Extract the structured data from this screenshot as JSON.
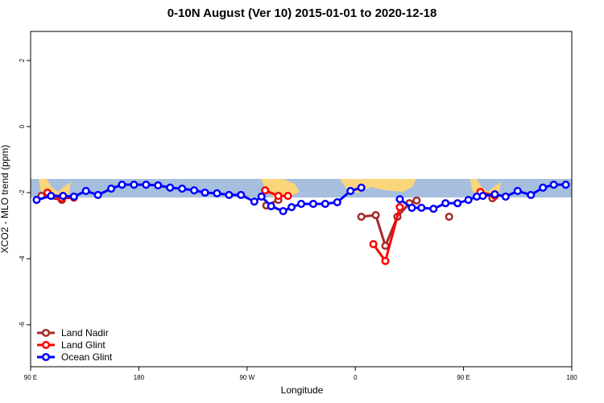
{
  "chart_data": {
    "type": "line",
    "title": "0-10N August (Ver 10)   2015-01-01 to 2020-12-18",
    "x_label": "Longitude",
    "y_label": "XCO2 - MLO trend (ppm)",
    "xlim": [
      90,
      540
    ],
    "ylim": [
      -7.27,
      2.88
    ],
    "xticks": [
      {
        "value": 90,
        "label": "90 E"
      },
      180,
      {
        "value": 270,
        "label": "90 W"
      },
      {
        "value": 360,
        "label": "0"
      },
      {
        "value": 450,
        "label": "90 E"
      },
      {
        "value": 540,
        "label": "180"
      }
    ],
    "yticks": [
      2,
      0,
      -2,
      -4,
      -6
    ],
    "legend": "bottom-left",
    "series": [
      {
        "name": "Land Nadir",
        "color": "#a52a2a",
        "x": [
          99,
          116,
          null,
          286,
          296,
          null,
          365,
          377,
          385,
          395,
          405,
          411,
          null,
          438,
          null,
          474
        ],
        "values": [
          -2.1,
          -2.22,
          null,
          -2.39,
          -2.22,
          null,
          -2.73,
          -2.68,
          -3.61,
          -2.73,
          -2.32,
          -2.24,
          null,
          -2.73,
          null,
          -2.17
        ]
      },
      {
        "name": "Land Glint",
        "color": "#ff0000",
        "x": [
          104,
          116,
          126,
          null,
          285,
          296,
          304,
          null,
          375,
          385,
          397,
          null,
          464,
          476
        ],
        "values": [
          -2.0,
          -2.17,
          -2.15,
          null,
          -1.93,
          -2.1,
          -2.1,
          null,
          -3.56,
          -4.07,
          -2.44,
          null,
          -1.98,
          -2.1
        ]
      },
      {
        "name": "Ocean Glint",
        "color": "#0000ff",
        "x": [
          95,
          107,
          117,
          126,
          136,
          146,
          157,
          166,
          176,
          186,
          196,
          206,
          216,
          226,
          235,
          245,
          255,
          265,
          276,
          282,
          290,
          300,
          307,
          315,
          325,
          335,
          345,
          356,
          365,
          null,
          397,
          407,
          415,
          425,
          435,
          445,
          454,
          461,
          466,
          476,
          485,
          495,
          506,
          516,
          525,
          535
        ],
        "values": [
          -2.22,
          -2.1,
          -2.1,
          -2.12,
          -1.95,
          -2.07,
          -1.88,
          -1.76,
          -1.76,
          -1.76,
          -1.78,
          -1.85,
          -1.88,
          -1.93,
          -2.0,
          -2.02,
          -2.07,
          -2.07,
          -2.27,
          -2.12,
          -2.41,
          -2.56,
          -2.44,
          -2.34,
          -2.34,
          -2.34,
          -2.29,
          -1.95,
          -1.85,
          null,
          -2.2,
          -2.46,
          -2.46,
          -2.49,
          -2.32,
          -2.32,
          -2.22,
          -2.12,
          -2.1,
          -2.05,
          -2.12,
          -1.95,
          -2.07,
          -1.85,
          -1.76,
          -1.76
        ]
      }
    ]
  }
}
